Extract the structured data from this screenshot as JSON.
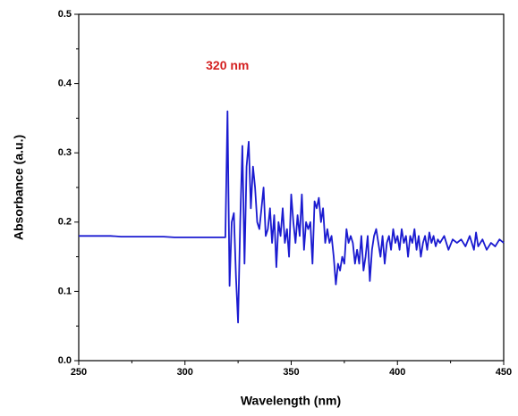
{
  "chart_data": {
    "type": "line",
    "xlabel": "Wavelength (nm)",
    "ylabel": "Absorbance (a.u.)",
    "annotations": [
      {
        "text": "320 nm",
        "x": 320,
        "y": 0.425
      }
    ],
    "xlim": [
      250,
      450
    ],
    "xticks": [
      250,
      300,
      350,
      400,
      450
    ],
    "xminor": [
      275,
      325,
      375,
      425
    ],
    "ylim": [
      0,
      0.5
    ],
    "yticks": [
      {
        "value": 0,
        "label": "0.0"
      },
      0.1,
      0.2,
      0.3,
      0.4,
      0.5
    ],
    "yminor": [
      0.05,
      0.15,
      0.25,
      0.35,
      0.45
    ],
    "series": [
      {
        "color": "#1a1ad0",
        "x": [
          250,
          255,
          260,
          265,
          270,
          275,
          280,
          285,
          290,
          295,
          300,
          305,
          310,
          315,
          318,
          319,
          320,
          321,
          322,
          323,
          324,
          325,
          326,
          327,
          328,
          329,
          330,
          331,
          332,
          333,
          334,
          335,
          336,
          337,
          338,
          339,
          340,
          341,
          342,
          343,
          344,
          345,
          346,
          347,
          348,
          349,
          350,
          351,
          352,
          353,
          354,
          355,
          356,
          357,
          358,
          359,
          360,
          361,
          362,
          363,
          364,
          365,
          366,
          367,
          368,
          369,
          370,
          371,
          372,
          373,
          374,
          375,
          376,
          377,
          378,
          379,
          380,
          381,
          382,
          383,
          384,
          385,
          386,
          387,
          388,
          389,
          390,
          391,
          392,
          393,
          394,
          395,
          396,
          397,
          398,
          399,
          400,
          401,
          402,
          403,
          404,
          405,
          406,
          407,
          408,
          409,
          410,
          411,
          412,
          413,
          414,
          415,
          416,
          417,
          418,
          419,
          420,
          422,
          424,
          426,
          428,
          430,
          432,
          434,
          436,
          437,
          438,
          440,
          442,
          444,
          446,
          448,
          450
        ],
        "values": [
          0.18,
          0.18,
          0.18,
          0.18,
          0.179,
          0.179,
          0.179,
          0.179,
          0.179,
          0.178,
          0.178,
          0.178,
          0.178,
          0.178,
          0.178,
          0.178,
          0.36,
          0.108,
          0.2,
          0.213,
          0.12,
          0.055,
          0.2,
          0.31,
          0.14,
          0.28,
          0.316,
          0.22,
          0.28,
          0.25,
          0.2,
          0.19,
          0.22,
          0.25,
          0.18,
          0.19,
          0.22,
          0.17,
          0.21,
          0.135,
          0.2,
          0.18,
          0.22,
          0.17,
          0.19,
          0.15,
          0.24,
          0.2,
          0.17,
          0.21,
          0.18,
          0.24,
          0.16,
          0.2,
          0.19,
          0.2,
          0.14,
          0.23,
          0.22,
          0.235,
          0.2,
          0.22,
          0.17,
          0.19,
          0.17,
          0.18,
          0.15,
          0.11,
          0.14,
          0.13,
          0.15,
          0.14,
          0.19,
          0.17,
          0.18,
          0.17,
          0.14,
          0.16,
          0.14,
          0.18,
          0.13,
          0.15,
          0.18,
          0.115,
          0.16,
          0.18,
          0.19,
          0.17,
          0.15,
          0.18,
          0.14,
          0.17,
          0.18,
          0.16,
          0.19,
          0.17,
          0.18,
          0.16,
          0.19,
          0.17,
          0.18,
          0.15,
          0.18,
          0.17,
          0.19,
          0.16,
          0.18,
          0.15,
          0.17,
          0.18,
          0.16,
          0.185,
          0.17,
          0.18,
          0.165,
          0.175,
          0.17,
          0.18,
          0.16,
          0.175,
          0.17,
          0.175,
          0.165,
          0.18,
          0.16,
          0.185,
          0.165,
          0.175,
          0.16,
          0.17,
          0.165,
          0.175,
          0.17
        ]
      }
    ]
  }
}
